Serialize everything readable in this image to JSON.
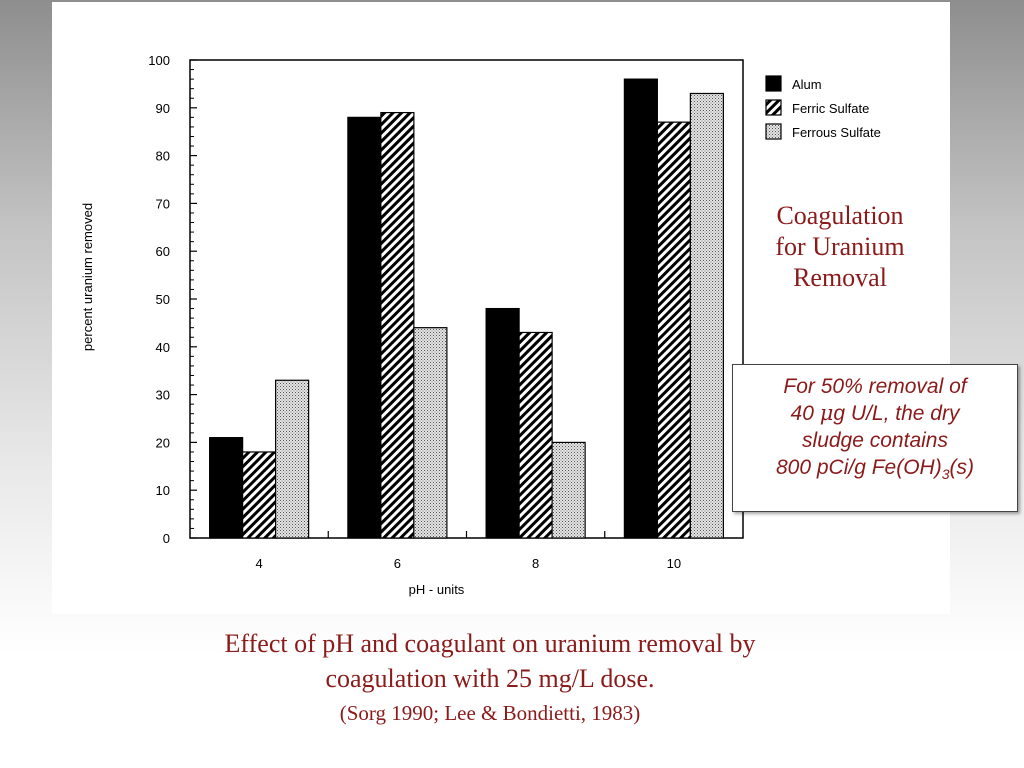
{
  "chart_data": {
    "type": "bar",
    "xlabel": "pH - units",
    "ylabel": "percent uranium removed",
    "categories": [
      "4",
      "6",
      "8",
      "10"
    ],
    "ylim": [
      0,
      100
    ],
    "yticks": [
      0,
      10,
      20,
      30,
      40,
      50,
      60,
      70,
      80,
      90,
      100
    ],
    "grid": false,
    "legend_position": "top-right",
    "series": [
      {
        "name": "Alum",
        "values": [
          21,
          88,
          48,
          96
        ],
        "pattern": "solid"
      },
      {
        "name": "Ferric Sulfate",
        "values": [
          18,
          89,
          43,
          87
        ],
        "pattern": "hatched"
      },
      {
        "name": "Ferrous Sulfate",
        "values": [
          33,
          44,
          20,
          93
        ],
        "pattern": "dotted"
      }
    ]
  },
  "side_title": {
    "line1": "Coagulation",
    "line2": "for Uranium",
    "line3": "Removal"
  },
  "note": {
    "line1": "For 50% removal of",
    "line2_pre": "40 ",
    "line2_symbol": "μ",
    "line2_post": "g U/L, the dry",
    "line3": "sludge contains",
    "line4_pre": "800 pCi/g Fe(OH)",
    "line4_sub": "3",
    "line4_post": "(s)"
  },
  "caption": {
    "line1": "Effect of pH and coagulant on uranium removal by",
    "line2": "coagulation with 25 mg/L dose.",
    "citation": "(Sorg 1990; Lee & Bondietti, 1983)"
  },
  "colors": {
    "title_text": "#8b1a1a",
    "bar_solid": "#000000",
    "panel_background": "#ffffff"
  }
}
